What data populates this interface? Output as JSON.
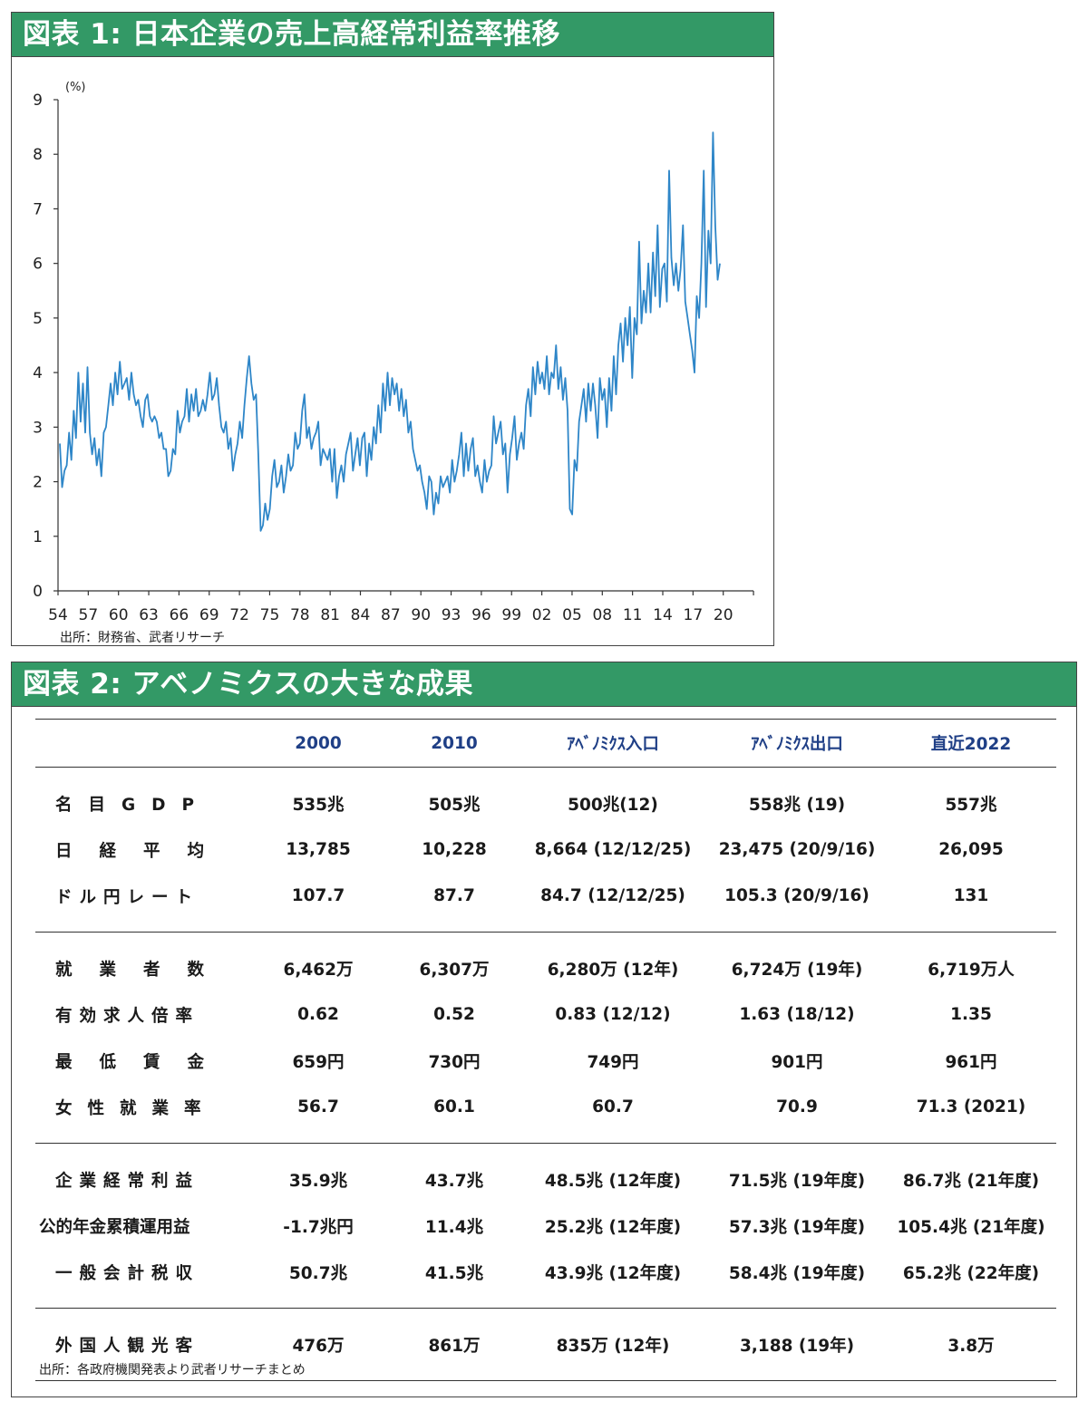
{
  "figure1": {
    "title": "図表 1: 日本企業の売上高経常利益率推移",
    "unit": "(%)",
    "source": "出所：財務省、武者リサーチ",
    "chart_data": {
      "type": "line",
      "ylim": [
        0,
        9
      ],
      "yticks": [
        "0",
        "1",
        "2",
        "3",
        "4",
        "5",
        "6",
        "7",
        "8",
        "9"
      ],
      "xticks": [
        "54",
        "57",
        "60",
        "63",
        "66",
        "69",
        "72",
        "75",
        "78",
        "81",
        "84",
        "87",
        "90",
        "93",
        "96",
        "99",
        "02",
        "05",
        "08",
        "11",
        "14",
        "17",
        "20"
      ],
      "x_start": 1954,
      "line_color": "#2e86c8",
      "series": [
        {
          "values": [
            2.7,
            1.9,
            2.2,
            2.3,
            2.9,
            2.4,
            3.3,
            2.8,
            4.0,
            3.1,
            3.8,
            2.9,
            4.1,
            2.9,
            2.5,
            2.8,
            2.3,
            2.6,
            2.1,
            2.9,
            3.0,
            3.4,
            3.8,
            3.4,
            4.0,
            3.6,
            4.2,
            3.7,
            3.8,
            3.9,
            3.5,
            4.0,
            3.6,
            3.4,
            3.5,
            3.2,
            3.0,
            3.5,
            3.6,
            3.2,
            3.1,
            3.2,
            3.1,
            2.8,
            2.9,
            2.6,
            2.6,
            2.1,
            2.2,
            2.6,
            2.5,
            3.3,
            2.9,
            3.1,
            3.2,
            3.7,
            3.1,
            3.6,
            3.3,
            3.7,
            3.2,
            3.3,
            3.5,
            3.3,
            3.6,
            4.0,
            3.5,
            3.6,
            3.9,
            3.4,
            3.0,
            2.9,
            3.1,
            2.6,
            2.8,
            2.2,
            2.5,
            2.7,
            3.1,
            2.8,
            3.4,
            3.9,
            4.3,
            3.8,
            3.5,
            3.6,
            2.5,
            1.1,
            1.2,
            1.6,
            1.3,
            1.5,
            2.1,
            2.4,
            1.9,
            2.0,
            2.3,
            1.8,
            2.1,
            2.5,
            2.2,
            2.3,
            2.9,
            2.6,
            2.7,
            3.3,
            3.6,
            2.8,
            3.0,
            2.6,
            2.8,
            2.9,
            3.1,
            2.3,
            2.6,
            2.5,
            2.4,
            2.6,
            2.0,
            2.6,
            1.7,
            2.1,
            2.3,
            2.0,
            2.5,
            2.7,
            2.9,
            2.2,
            2.5,
            2.8,
            2.3,
            2.8,
            2.9,
            2.1,
            2.7,
            2.4,
            3.0,
            2.7,
            3.4,
            2.9,
            3.8,
            3.3,
            4.0,
            3.4,
            3.9,
            3.6,
            3.8,
            3.3,
            3.7,
            3.2,
            3.5,
            2.9,
            3.1,
            2.6,
            2.4,
            2.2,
            2.3,
            2.0,
            1.8,
            1.5,
            2.1,
            2.0,
            1.4,
            1.8,
            1.6,
            2.1,
            1.9,
            2.0,
            2.1,
            1.8,
            2.4,
            2.0,
            2.2,
            2.5,
            2.9,
            2.1,
            2.7,
            2.2,
            2.6,
            2.8,
            2.1,
            2.3,
            2.0,
            1.8,
            2.4,
            2.0,
            2.2,
            2.3,
            3.2,
            2.7,
            2.9,
            3.1,
            2.5,
            2.7,
            1.8,
            2.5,
            2.8,
            3.2,
            2.4,
            2.7,
            2.9,
            2.6,
            3.4,
            3.7,
            3.2,
            4.1,
            3.6,
            4.2,
            3.8,
            4.0,
            3.7,
            4.3,
            3.6,
            4.0,
            3.9,
            4.5,
            3.7,
            4.1,
            3.5,
            3.9,
            3.3,
            1.5,
            1.4,
            2.4,
            2.2,
            3.1,
            3.4,
            3.7,
            3.1,
            3.8,
            3.3,
            3.8,
            3.4,
            2.8,
            3.9,
            3.5,
            3.7,
            3.0,
            3.9,
            3.3,
            4.3,
            3.6,
            4.5,
            4.9,
            4.2,
            5.0,
            4.5,
            5.2,
            3.9,
            5.0,
            4.7,
            6.4,
            4.9,
            5.5,
            5.1,
            6.0,
            5.1,
            6.2,
            5.4,
            6.7,
            5.2,
            5.9,
            6.0,
            5.3,
            7.7,
            6.1,
            5.6,
            6.0,
            5.5,
            5.9,
            6.7,
            5.3,
            5.0,
            4.7,
            4.4,
            4.0,
            5.4,
            5.0,
            6.0,
            7.7,
            5.2,
            6.6,
            6.0,
            8.4,
            6.7,
            5.7,
            6.0
          ]
        }
      ]
    }
  },
  "figure2": {
    "title": "図表 2: アベノミクスの大きな成果",
    "source": "出所：各政府機関発表より武者リサーチまとめ",
    "columns": [
      "2000",
      "2010",
      "ｱﾍﾞﾉﾐｸｽ入口",
      "ｱﾍﾞﾉﾐｸｽ出口",
      "直近2022"
    ],
    "groups": [
      [
        {
          "label": "名目GDP",
          "cells": [
            "535兆",
            "505兆",
            "500兆(12)",
            "558兆 (19)",
            "557兆"
          ]
        },
        {
          "label": "日経平均",
          "cells": [
            "13,785",
            "10,228",
            "8,664 (12/12/25)",
            "23,475 (20/9/16)",
            "26,095"
          ]
        },
        {
          "label": "ドル円レート",
          "cells": [
            "107.7",
            "87.7",
            "84.7 (12/12/25)",
            "105.3 (20/9/16)",
            "131"
          ]
        }
      ],
      [
        {
          "label": "就業者数",
          "cells": [
            "6,462万",
            "6,307万",
            "6,280万 (12年)",
            "6,724万 (19年)",
            "6,719万人"
          ]
        },
        {
          "label": "有効求人倍率",
          "cells": [
            "0.62",
            "0.52",
            "0.83 (12/12)",
            "1.63 (18/12)",
            "1.35"
          ]
        },
        {
          "label": "最低賃金",
          "cells": [
            "659円",
            "730円",
            "749円",
            "901円",
            "961円"
          ]
        },
        {
          "label": "女性就業率",
          "cells": [
            "56.7",
            "60.1",
            "60.7",
            "70.9",
            "71.3 (2021)"
          ]
        }
      ],
      [
        {
          "label": "企業経常利益",
          "cells": [
            "35.9兆",
            "43.7兆",
            "48.5兆 (12年度)",
            "71.5兆 (19年度)",
            "86.7兆 (21年度)"
          ]
        },
        {
          "label": "公的年金累積運用益",
          "cells": [
            "-1.7兆円",
            "11.4兆",
            "25.2兆 (12年度)",
            "57.3兆 (19年度)",
            "105.4兆 (21年度)"
          ]
        },
        {
          "label": "一般会計税収",
          "cells": [
            "50.7兆",
            "41.5兆",
            "43.9兆 (12年度)",
            "58.4兆 (19年度)",
            "65.2兆 (22年度)"
          ]
        }
      ],
      [
        {
          "label": "外国人観光客",
          "cells": [
            "476万",
            "861万",
            "835万 (12年)",
            "3,188 (19年)",
            "3.8万"
          ]
        }
      ]
    ]
  }
}
